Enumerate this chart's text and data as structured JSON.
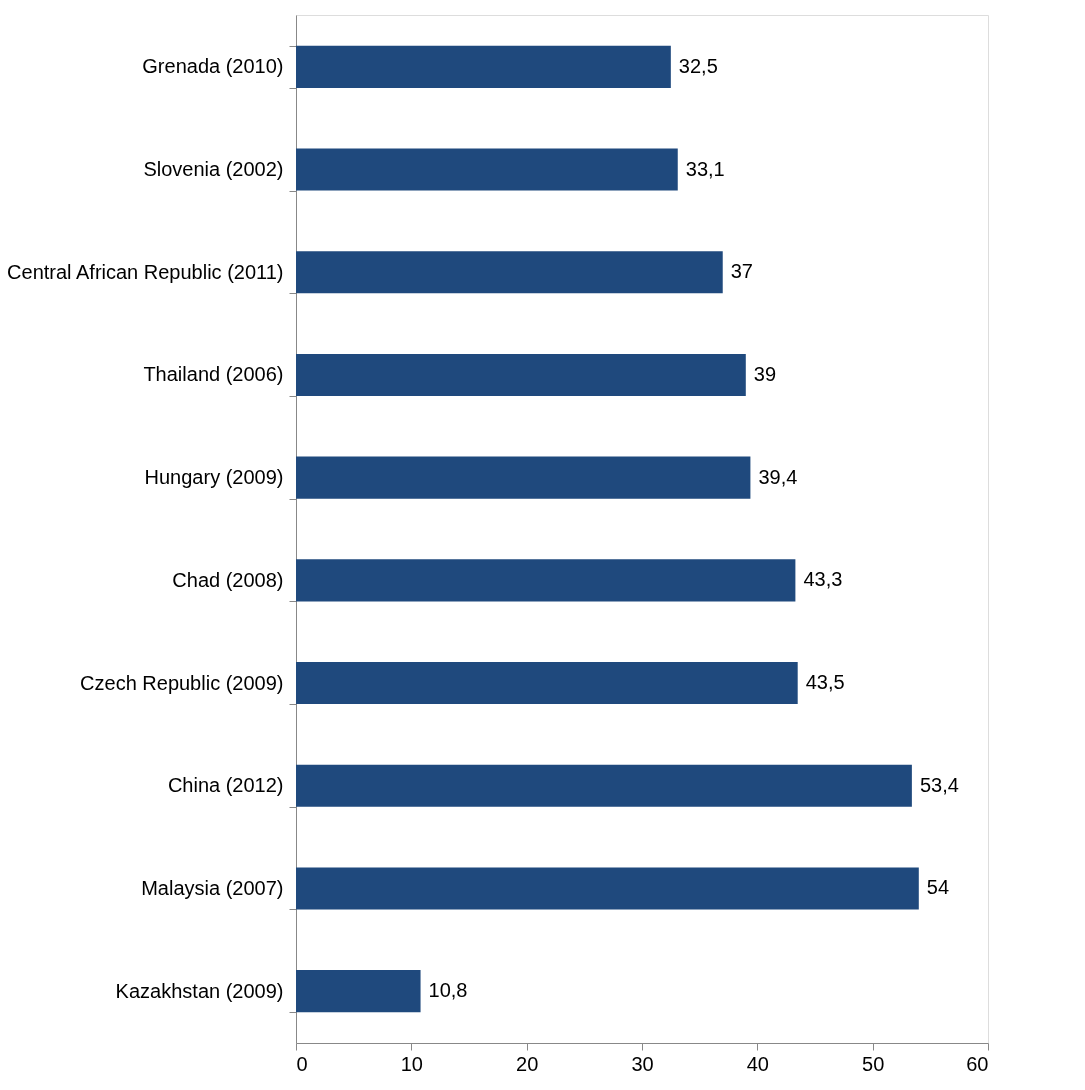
{
  "chart_data": {
    "type": "bar",
    "orientation": "horizontal",
    "categories": [
      "Grenada (2010)",
      "Slovenia (2002)",
      "Central African Republic (2011)",
      "Thailand (2006)",
      "Hungary (2009)",
      "Chad (2008)",
      "Czech Republic (2009)",
      "China (2012)",
      "Malaysia (2007)",
      "Kazakhstan (2009)"
    ],
    "values": [
      32.5,
      33.1,
      37,
      39,
      39.4,
      43.3,
      43.5,
      53.4,
      54,
      10.8
    ],
    "value_labels": [
      "32,5",
      "33,1",
      "37",
      "39",
      "39,4",
      "43,3",
      "43,5",
      "53,4",
      "54",
      "10,8"
    ],
    "color": "#1f497d",
    "xlim": [
      0,
      60
    ],
    "xticks": [
      0,
      10,
      20,
      30,
      40,
      50,
      60
    ],
    "grid": false
  }
}
